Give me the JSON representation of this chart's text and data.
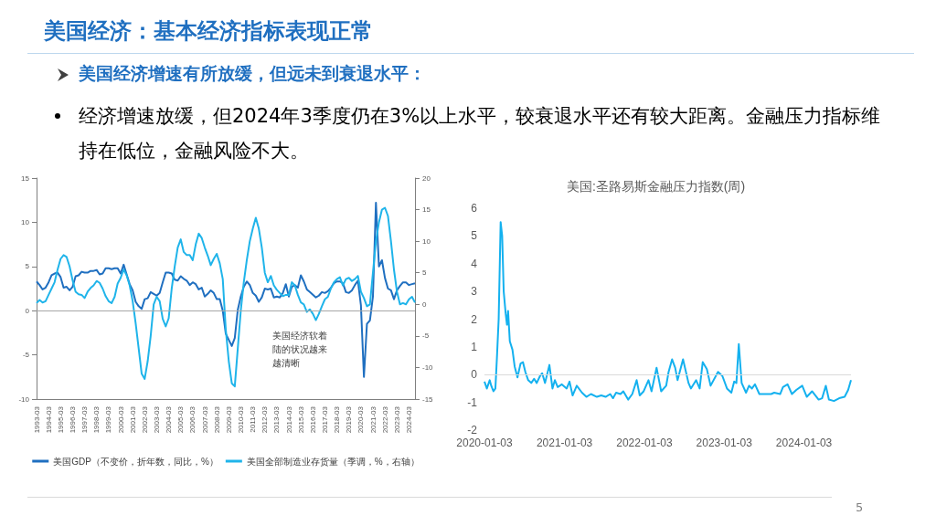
{
  "chart_data": [
    {
      "type": "other",
      "title": "美国经济：基本经济指标表现正常",
      "annotations": [
        "美国经济增速有所放缓，但远未到衰退水平：",
        "经济增速放缓，但2024年3季度仍在3%以上水平，较衰退水平还有较大距离。金融压力指标维持在低位，金融风险不大。",
        "5"
      ]
    },
    {
      "type": "line",
      "marker": "none",
      "legend": "bottom",
      "categories": [
        "1993-03",
        null,
        null,
        null,
        "1994-03",
        null,
        null,
        null,
        "1995-03",
        null,
        null,
        null,
        "1996-03",
        null,
        null,
        null,
        "1997-03",
        null,
        null,
        null,
        "1998-03",
        null,
        null,
        null,
        "1999-03",
        null,
        null,
        null,
        "2000-03",
        null,
        null,
        null,
        "2001-03",
        null,
        null,
        null,
        "2002-03",
        null,
        null,
        null,
        "2003-03",
        null,
        null,
        null,
        "2004-03",
        null,
        null,
        null,
        "2005-03",
        null,
        null,
        null,
        "2006-03",
        null,
        null,
        null,
        "2007-03",
        null,
        null,
        null,
        "2008-03",
        null,
        null,
        null,
        "2009-03",
        null,
        null,
        null,
        "2010-03",
        null,
        null,
        null,
        "2011-03",
        null,
        null,
        null,
        "2012-03",
        null,
        null,
        null,
        "2013-03",
        null,
        null,
        null,
        "2014-03",
        null,
        null,
        null,
        "2015-03",
        null,
        null,
        null,
        "2016-03",
        null,
        null,
        null,
        "2017-03",
        null,
        null,
        null,
        "2018-03",
        null,
        null,
        null,
        "2019-03",
        null,
        null,
        null,
        "2020-03",
        null,
        null,
        null,
        "2021-03",
        null,
        null,
        null,
        "2022-03",
        null,
        null,
        null,
        "2023-03",
        null,
        null,
        null,
        "2024-03",
        null,
        null
      ],
      "ylim": [
        -10,
        15
      ],
      "yticks": [
        -10,
        -5,
        0,
        5,
        10,
        15
      ],
      "y2lim": [
        -15,
        20
      ],
      "y2ticks": [
        -15,
        -10,
        -5,
        0,
        5,
        10,
        15,
        20
      ],
      "ref_lines": [
        {
          "axis": "y",
          "value": 0,
          "color": "#a6a6a6"
        }
      ],
      "annotations": [
        "美国经济软着陆的状况越来越清晰"
      ],
      "series": [
        {
          "name": "美国GDP（不变价，折年数，同比，%）",
          "color": "#1f6fc0",
          "values": [
            3.3,
            2.9,
            2.4,
            2.6,
            3.2,
            4.0,
            4.2,
            4.3,
            3.8,
            2.6,
            2.7,
            2.3,
            2.7,
            3.9,
            4.0,
            4.4,
            4.3,
            4.3,
            4.5,
            4.5,
            4.6,
            4.1,
            4.2,
            4.8,
            4.8,
            4.7,
            4.8,
            4.8,
            4.2,
            5.2,
            4.1,
            3.0,
            2.3,
            1.0,
            0.5,
            0.2,
            1.3,
            1.4,
            2.1,
            1.9,
            1.7,
            2.0,
            3.2,
            4.3,
            4.3,
            4.2,
            3.5,
            3.4,
            3.9,
            3.6,
            3.4,
            2.9,
            3.2,
            3.0,
            2.4,
            2.6,
            1.6,
            1.9,
            2.3,
            2.0,
            1.3,
            1.3,
            0.0,
            -2.6,
            -3.3,
            -4.0,
            -3.1,
            0.1,
            1.6,
            2.7,
            3.3,
            2.9,
            2.0,
            1.7,
            1.0,
            1.5,
            2.5,
            2.4,
            2.5,
            1.5,
            1.6,
            1.5,
            2.0,
            3.0,
            1.6,
            2.7,
            2.9,
            2.6,
            4.0,
            3.3,
            2.4,
            2.1,
            1.8,
            1.5,
            1.7,
            2.1,
            2.0,
            2.2,
            2.6,
            3.1,
            3.3,
            3.3,
            3.1,
            2.1,
            2.0,
            2.3,
            2.9,
            3.4,
            0.6,
            -7.5,
            -1.5,
            -1.1,
            1.6,
            12.2,
            5.0,
            5.7,
            3.7,
            2.5,
            2.3,
            1.3,
            2.3,
            2.8,
            3.2,
            3.2,
            2.9,
            3.0,
            3.1
          ]
        },
        {
          "name": "美国全部制造业存货量（季调，%，右轴）",
          "color": "#1fb4ea",
          "axis": "y2",
          "values": [
            0.2,
            0.7,
            0.3,
            0.5,
            1.5,
            2.5,
            3.5,
            5.5,
            7.2,
            7.8,
            7.5,
            6.0,
            3.8,
            2.0,
            1.6,
            1.5,
            1.0,
            2.0,
            2.6,
            3.0,
            3.7,
            3.4,
            2.5,
            1.3,
            0.5,
            0.2,
            1.2,
            3.3,
            4.2,
            5.5,
            4.6,
            3.0,
            0.5,
            -3.0,
            -7.0,
            -11.0,
            -11.8,
            -9.0,
            -5.0,
            0.0,
            1.2,
            0.5,
            -2.3,
            -3.5,
            -2.2,
            2.5,
            6.0,
            9.0,
            10.3,
            8.3,
            7.8,
            7.8,
            7.0,
            9.5,
            11.2,
            10.5,
            9.0,
            7.7,
            6.2,
            7.2,
            8.0,
            6.5,
            4.0,
            -4.0,
            -9.0,
            -12.5,
            -13.0,
            -7.0,
            -1.0,
            3.5,
            7.0,
            10.0,
            12.0,
            13.7,
            12.0,
            9.0,
            5.0,
            3.5,
            4.5,
            3.0,
            2.3,
            1.8,
            1.3,
            1.5,
            1.5,
            3.5,
            3.0,
            1.5,
            0.3,
            0.0,
            -1.2,
            -0.8,
            -1.5,
            -2.5,
            -1.5,
            -0.3,
            0.8,
            1.2,
            2.5,
            3.5,
            4.0,
            4.3,
            3.0,
            4.0,
            4.2,
            3.7,
            4.0,
            4.5,
            2.0,
            1.0,
            -0.3,
            0.0,
            5.0,
            10.0,
            13.0,
            15.0,
            15.3,
            14.0,
            10.0,
            5.5,
            2.0,
            0.0,
            0.2,
            0.0,
            0.8,
            1.2,
            0.3
          ]
        }
      ]
    },
    {
      "type": "line",
      "marker": "none",
      "title": "美国:圣路易斯金融压力指数(周)",
      "color": "#14b1ef",
      "x": [
        "2020-01-03",
        "2020-01-14",
        "2020-01-27",
        "2020-02-03",
        "2020-02-13",
        "2020-02-22",
        "2020-02-29",
        "2020-03-08",
        "2020-03-17",
        "2020-03-24",
        "2020-03-31",
        "2020-04-09",
        "2020-04-15",
        "2020-04-20",
        "2020-04-28",
        "2020-05-10",
        "2020-05-20",
        "2020-06-02",
        "2020-06-16",
        "2020-06-27",
        "2020-07-08",
        "2020-07-21",
        "2020-08-04",
        "2020-08-17",
        "2020-08-29",
        "2020-09-13",
        "2020-09-23",
        "2020-10-06",
        "2020-10-26",
        "2020-11-09",
        "2020-11-20",
        "2020-12-03",
        "2020-12-22",
        "2021-01-13",
        "2021-01-26",
        "2021-02-09",
        "2021-02-28",
        "2021-03-24",
        "2021-04-13",
        "2021-05-04",
        "2021-05-31",
        "2021-06-20",
        "2021-07-10",
        "2021-07-31",
        "2021-08-13",
        "2021-08-27",
        "2021-09-16",
        "2021-09-29",
        "2021-10-21",
        "2021-11-09",
        "2021-11-29",
        "2021-12-13",
        "2021-12-31",
        "2022-01-22",
        "2022-02-05",
        "2022-02-28",
        "2022-03-21",
        "2022-04-13",
        "2022-04-24",
        "2022-05-10",
        "2022-05-24",
        "2022-06-04",
        "2022-06-29",
        "2022-07-24",
        "2022-08-04",
        "2022-08-28",
        "2022-09-13",
        "2022-09-27",
        "2022-10-16",
        "2022-11-02",
        "2022-12-06",
        "2022-12-26",
        "2023-01-16",
        "2023-02-05",
        "2023-02-18",
        "2023-02-28",
        "2023-03-11",
        "2023-03-24",
        "2023-04-13",
        "2023-04-27",
        "2023-05-10",
        "2023-05-24",
        "2023-06-13",
        "2023-07-10",
        "2023-08-06",
        "2023-08-20",
        "2023-09-16",
        "2023-09-29",
        "2023-10-20",
        "2023-11-09",
        "2023-11-29",
        "2023-12-26",
        "2024-01-16",
        "2024-02-09",
        "2024-03-10",
        "2024-03-26",
        "2024-04-12",
        "2024-04-26",
        "2024-05-19",
        "2024-06-12",
        "2024-07-07",
        "2024-07-23",
        "2024-08-05"
      ],
      "values": [
        -0.25,
        -0.5,
        -0.2,
        -0.4,
        -0.6,
        -0.5,
        0.6,
        2.0,
        5.5,
        5.0,
        3.0,
        2.2,
        1.8,
        2.3,
        1.2,
        0.9,
        0.3,
        -0.1,
        0.4,
        0.45,
        0.1,
        -0.2,
        -0.3,
        -0.15,
        -0.3,
        -0.05,
        0.05,
        -0.3,
        0.35,
        -0.5,
        -0.2,
        -0.45,
        -0.35,
        -0.5,
        -0.25,
        -0.75,
        -0.4,
        -0.65,
        -0.8,
        -0.7,
        -0.8,
        -0.75,
        -0.8,
        -0.7,
        -0.85,
        -0.65,
        -0.7,
        -0.6,
        -0.9,
        -0.7,
        -0.2,
        -0.75,
        -0.6,
        -0.2,
        -0.6,
        0.25,
        -0.6,
        -0.4,
        0.1,
        0.55,
        0.25,
        -0.2,
        0.55,
        -0.3,
        -0.5,
        -0.2,
        -0.5,
        0.45,
        0.2,
        -0.4,
        0.1,
        -0.05,
        -0.5,
        -0.65,
        -0.25,
        -0.3,
        1.1,
        -0.3,
        -0.65,
        -0.4,
        -0.5,
        -0.35,
        -0.7,
        -0.7,
        -0.7,
        -0.65,
        -0.7,
        -0.45,
        -0.35,
        -0.7,
        -0.55,
        -0.4,
        -0.8,
        -0.6,
        -0.9,
        -0.85,
        -0.4,
        -0.9,
        -0.95,
        -0.85,
        -0.8,
        -0.55,
        -0.2
      ],
      "xlim": [
        "2020-01-03",
        "2024-08-05"
      ],
      "xticks": [
        "2020-01-03",
        "2021-01-03",
        "2022-01-03",
        "2023-01-03",
        "2024-01-03"
      ],
      "ylim": [
        -2,
        6
      ],
      "yticks": [
        -2,
        -1,
        0,
        1,
        2,
        3,
        4,
        5,
        6
      ],
      "ref_lines": [
        {
          "axis": "y",
          "value": 0,
          "color": "#d9d9d9"
        }
      ]
    }
  ]
}
